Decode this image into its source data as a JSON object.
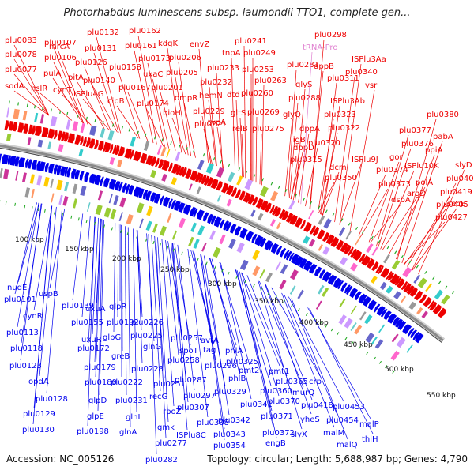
{
  "title": "Photorhabdus luminescens subsp. laumondii TTO1, complete gen...",
  "footer": {
    "accession": "Accession: NC_005126",
    "stats": "Topology: circular; Length: 5,688,987 bp; Genes: 4,790"
  },
  "colors": {
    "forward": "#ee0000",
    "reverse": "#0000ee",
    "trna": "#e080d0",
    "backbone": "#888888",
    "tick_dots": "#22aa22"
  },
  "scale_labels": [
    "100 kbp",
    "150 kbp",
    "200 kbp",
    "250 kbp",
    "300 kbp",
    "350 kbp",
    "400 kbp",
    "450 kbp",
    "500 kbp",
    "550 kbp"
  ],
  "forward_genes": [
    "mrcA",
    "plu0083",
    "plu0078",
    "plu0077",
    "sodA",
    "plu0107",
    "plu0106",
    "hslR",
    "pulA",
    "cynT",
    "plu0132",
    "plu0131",
    "plu0126",
    "pitA",
    "plu0140",
    "ISPlu4G",
    "plu0162",
    "plu0161",
    "plu0158",
    "plu0173",
    "kdgK",
    "uxaC",
    "plu0167",
    "cipB",
    "plu0174",
    "envZ",
    "plu0206",
    "plu0205",
    "plu0201",
    "ompR",
    "bioH",
    "plu0221",
    "plu0241",
    "tnpA",
    "plu0249",
    "plu0233",
    "plu0232",
    "plu0253",
    "hemN",
    "plu0229",
    "typA",
    "plu0263",
    "dtd",
    "plu0260",
    "gltS",
    "plu0269",
    "relB",
    "plu0275",
    "plu0298",
    "tRNA-Pro",
    "plu0281",
    "dppB",
    "plu0311",
    "glyS",
    "plu0288",
    "glyQ",
    "ligB",
    "dppA",
    "dppD",
    "plu0315",
    "plu0320",
    "ISPlu3Aa",
    "plu0340",
    "vsr",
    "ISPlu3Ab",
    "plu0323",
    "plu0322",
    "ISPlu9J",
    "dcm",
    "plu0350",
    "plu0380",
    "plu0377",
    "pabA",
    "plu0376",
    "ppiA",
    "gor",
    "ISPlu10K",
    "slyD",
    "plu0374",
    "plu0373",
    "polA",
    "plu0406",
    "argD",
    "dsbA",
    "plu0419",
    "plu0405",
    "secE",
    "plu0427"
  ],
  "reverse_genes": [
    "nudE",
    "plu0101",
    "uspB",
    "cynR",
    "plu0139",
    "plu0113",
    "plu0118",
    "plu0123",
    "opdA",
    "plu0128",
    "plu0129",
    "plu0130",
    "uxuA",
    "plu0155",
    "uxuR",
    "plu0172",
    "plu0179",
    "plu0180",
    "glpD",
    "glpE",
    "plu0198",
    "glpR",
    "plu0192",
    "glpG",
    "greB",
    "plu0222",
    "plu0231",
    "glnL",
    "glnA",
    "plu0226",
    "plu0225",
    "glnG",
    "plu0228",
    "plu0251",
    "plu0257",
    "plu0258",
    "recG",
    "rpoZ",
    "gmk",
    "plu0277",
    "plu0282",
    "spoT",
    "plu0287",
    "plu0297",
    "plu0307",
    "plu0308",
    "ISPlu8C",
    "avtA",
    "tag",
    "plu0296",
    "phlA",
    "plu0325",
    "phlB",
    "pmt2",
    "plu0329",
    "plu0341",
    "plu0342",
    "plu0343",
    "plu0354",
    "pmt1",
    "plu0365",
    "plu0360",
    "plu0370",
    "plu0371",
    "plu0372",
    "engB",
    "crp",
    "murQ",
    "plu0418",
    "yheS",
    "slyX",
    "malM",
    "plu0454",
    "plu0453",
    "malP",
    "malQ",
    "thiH"
  ]
}
